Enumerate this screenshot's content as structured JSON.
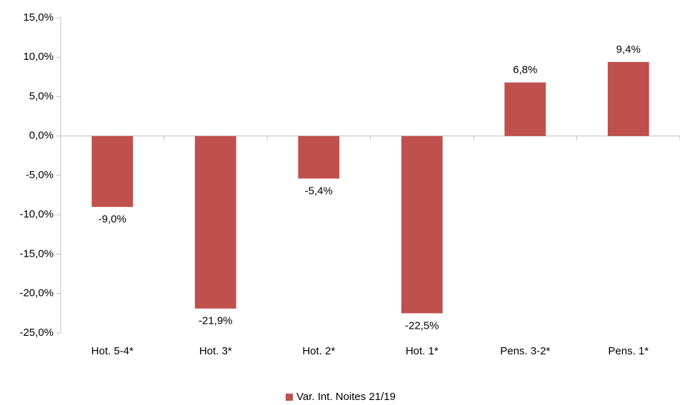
{
  "chart_data": {
    "type": "bar",
    "categories": [
      "Hot. 5-4*",
      "Hot. 3*",
      "Hot. 2*",
      "Hot. 1*",
      "Pens. 3-2*",
      "Pens. 1*"
    ],
    "series": [
      {
        "name": "Var. Int. Noites 21/19",
        "color": "#c0504d",
        "values": [
          -9.0,
          -21.9,
          -5.4,
          -22.5,
          6.8,
          9.4
        ],
        "value_labels": [
          "-9,0%",
          "-21,9%",
          "-5,4%",
          "-22,5%",
          "6,8%",
          "9,4%"
        ]
      }
    ],
    "ylim": [
      -25,
      15
    ],
    "yticks": [
      {
        "value": -25,
        "label": "-25,0%"
      },
      {
        "value": -20,
        "label": "-20,0%"
      },
      {
        "value": -15,
        "label": "-15,0%"
      },
      {
        "value": -10,
        "label": "-10,0%"
      },
      {
        "value": -5,
        "label": "-5,0%"
      },
      {
        "value": 0,
        "label": "0,0%"
      },
      {
        "value": 5,
        "label": "5,0%"
      },
      {
        "value": 10,
        "label": "10,0%"
      },
      {
        "value": 15,
        "label": "15,0%"
      }
    ],
    "grid": false,
    "legend": "bottom"
  }
}
